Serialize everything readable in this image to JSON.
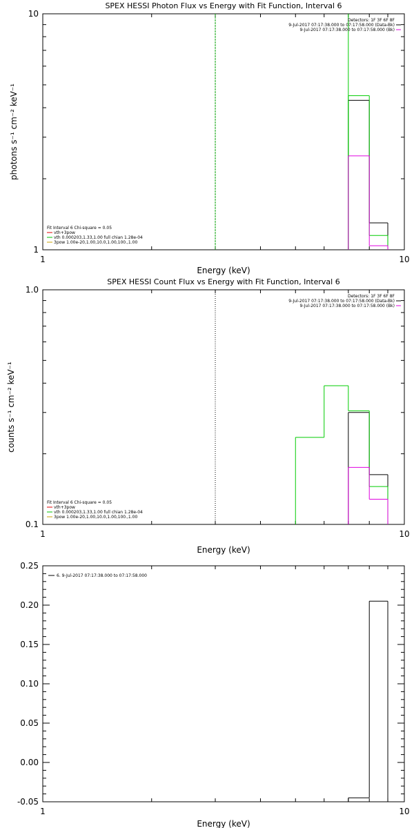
{
  "chart_data": [
    {
      "type": "line",
      "title": "SPEX HESSI Photon Flux vs Energy with Fit Function, Interval 6",
      "xlabel": "Energy (keV)",
      "ylabel": "photons s⁻¹ cm⁻² keV⁻¹",
      "xscale": "log",
      "yscale": "log",
      "xlim": [
        1,
        10
      ],
      "ylim": [
        1,
        10
      ],
      "x_ticks": [
        "1",
        "10"
      ],
      "y_ticks": [
        "1",
        "10"
      ],
      "vline": {
        "x": 3,
        "color": "#00a000",
        "style": "dashed"
      },
      "legend_topright": {
        "lines": [
          "Detectors: 1F 3F 6F 8F",
          "9-Jul-2017 07:17:38.000 to 07:17:58.000 (Data-Bk)",
          "9-Jul-2017 07:17:38.000 to 07:17:58.000 (Bk)"
        ],
        "colors": [
          "#000000",
          "#000000",
          "#e000e0"
        ]
      },
      "legend_bottomleft": {
        "lines": [
          "Fit Interval 6   Chi-square = 0.05",
          "vth+3pow",
          "vth 0.000203,1.33,1.00  full chian 1.28e-04",
          "3pow 1.00e-20,1.00,10.0,1.00,100.,1.00"
        ],
        "colors": [
          "#000000",
          "#e00000",
          "#00c000",
          "#c8a000"
        ]
      },
      "series": [
        {
          "color": "#000000",
          "steps": [
            {
              "x0": 7.0,
              "x1": 8.0,
              "y": 4.3
            },
            {
              "x0": 8.0,
              "x1": 9.0,
              "y": 1.3
            }
          ]
        },
        {
          "color": "#00cc00",
          "steps": [
            {
              "x0": 7.0,
              "x1": 7.0,
              "y": 10
            },
            {
              "x0": 7.0,
              "x1": 8.0,
              "y": 4.5
            },
            {
              "x0": 8.0,
              "x1": 9.0,
              "y": 1.15
            }
          ]
        },
        {
          "color": "#e000e0",
          "steps": [
            {
              "x0": 7.0,
              "x1": 8.0,
              "y": 2.5
            },
            {
              "x0": 8.0,
              "x1": 9.0,
              "y": 1.04
            }
          ]
        }
      ]
    },
    {
      "type": "line",
      "title": "SPEX HESSI Count Flux vs Energy with Fit Function, Interval 6",
      "xlabel": "Energy (keV)",
      "ylabel": "counts s⁻¹ cm⁻² keV⁻¹",
      "xscale": "log",
      "yscale": "log",
      "xlim": [
        1,
        10
      ],
      "ylim": [
        0.1,
        1.0
      ],
      "x_ticks": [
        "1",
        "10"
      ],
      "y_ticks": [
        "0.1",
        "1.0"
      ],
      "vline": {
        "x": 3,
        "color": "#000000",
        "style": "dotted"
      },
      "legend_topright": {
        "lines": [
          "Detectors: 1F 3F 6F 8F",
          "9-Jul-2017 07:17:38.000 to 07:17:58.000 (Data-Bk)",
          "9-Jul-2017 07:17:38.000 to 07:17:58.000 (Bk)"
        ],
        "colors": [
          "#000000",
          "#000000",
          "#e000e0"
        ]
      },
      "legend_bottomleft": {
        "lines": [
          "Fit Interval 6   Chi-square = 0.05",
          "vth+3pow",
          "vth 0.000203,1.33,1.00  full chian 1.28e-04",
          "3pow 1.00e-20,1.00,10.0,1.00,100.,1.00"
        ],
        "colors": [
          "#000000",
          "#e00000",
          "#00c000",
          "#c8a000"
        ]
      },
      "series": [
        {
          "color": "#000000",
          "steps": [
            {
              "x0": 7.0,
              "x1": 8.0,
              "y": 0.3
            },
            {
              "x0": 8.0,
              "x1": 9.0,
              "y": 0.163
            }
          ]
        },
        {
          "color": "#00cc00",
          "steps": [
            {
              "x0": 5.0,
              "x1": 6.0,
              "y": 0.235
            },
            {
              "x0": 6.0,
              "x1": 7.0,
              "y": 0.39
            },
            {
              "x0": 7.0,
              "x1": 8.0,
              "y": 0.305
            },
            {
              "x0": 8.0,
              "x1": 9.0,
              "y": 0.145
            }
          ]
        },
        {
          "color": "#e000e0",
          "steps": [
            {
              "x0": 7.0,
              "x1": 8.0,
              "y": 0.175
            },
            {
              "x0": 8.0,
              "x1": 9.0,
              "y": 0.128
            }
          ]
        }
      ]
    },
    {
      "type": "line",
      "xlabel": "Energy (keV)",
      "ylabel": "",
      "xscale": "log",
      "yscale": "linear",
      "xlim": [
        1,
        10
      ],
      "ylim": [
        -0.05,
        0.25
      ],
      "x_ticks": [
        "1",
        "10"
      ],
      "y_ticks": [
        "-0.05",
        "0.00",
        "0.05",
        "0.10",
        "0.15",
        "0.20",
        "0.25"
      ],
      "legend_topleft": {
        "lines": [
          "6. 9-Jul-2017 07:17:38.000 to 07:17:58.000"
        ],
        "colors": [
          "#000000"
        ]
      },
      "series": [
        {
          "color": "#000000",
          "steps": [
            {
              "x0": 7.0,
              "x1": 8.0,
              "y": -0.045
            },
            {
              "x0": 8.0,
              "x1": 9.0,
              "y": 0.205
            }
          ]
        }
      ]
    }
  ]
}
